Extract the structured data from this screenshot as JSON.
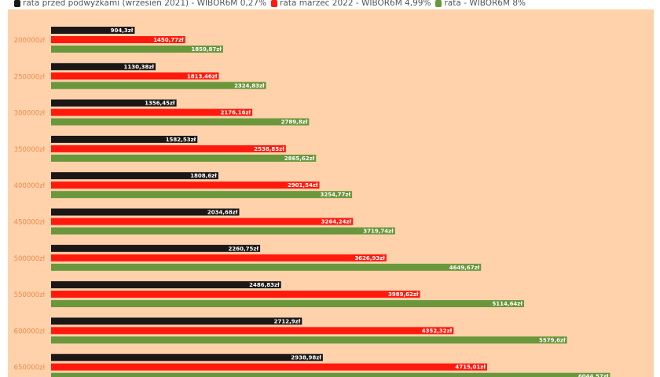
{
  "chart_data": {
    "type": "bar",
    "orientation": "horizontal",
    "title": "",
    "xlabel": "",
    "ylabel": "",
    "grid": false,
    "legend_placement": "top-left",
    "categories": [
      "200000zł",
      "250000zł",
      "300000zł",
      "350000zł",
      "400000zł",
      "450000zł",
      "500000zł",
      "550000zł",
      "600000zł",
      "650000zł"
    ],
    "series": [
      {
        "name": "rata przed podwyżkami (wrzesień 2021) - WIBOR6M 0,27%",
        "color": "#1c1716",
        "values": [
          904.3,
          1130.38,
          1356.45,
          1582.53,
          1808.6,
          2034.68,
          2260.75,
          2486.83,
          2712.9,
          2938.98
        ],
        "labels": [
          "904,3zł",
          "1130,38zł",
          "1356,45zł",
          "1582,53zł",
          "1808,6zł",
          "2034,68zł",
          "2260,75zł",
          "2486,83zł",
          "2712,9zł",
          "2938,98zł"
        ]
      },
      {
        "name": "rata marzec 2022 - WIBOR6M 4,99%",
        "color": "#ff1a0d",
        "values": [
          1450.77,
          1813.46,
          2176.16,
          2538.85,
          2901.54,
          3264.24,
          3626.93,
          3989.62,
          4352.32,
          4715.01
        ],
        "labels": [
          "1450,77zł",
          "1813,46zł",
          "2176,16zł",
          "2538,85zł",
          "2901,54zł",
          "3264,24zł",
          "3626,93zł",
          "3989,62zł",
          "4352,32zł",
          "4715,01zł"
        ]
      },
      {
        "name": "rata - WIBOR6M 8%",
        "color": "#6a973c",
        "values": [
          1859.87,
          2324.83,
          2789.8,
          2865.62,
          3254.77,
          3719.74,
          4649.67,
          5114.64,
          5579.6,
          6044.57
        ],
        "labels": [
          "1859,87zł",
          "2324,83zł",
          "2789,8zł",
          "2865,62zł",
          "3254,77zł",
          "3719,74zł",
          "4649,67zł",
          "5114,64zł",
          "5579,6zł",
          "6044,57zł"
        ]
      }
    ]
  }
}
